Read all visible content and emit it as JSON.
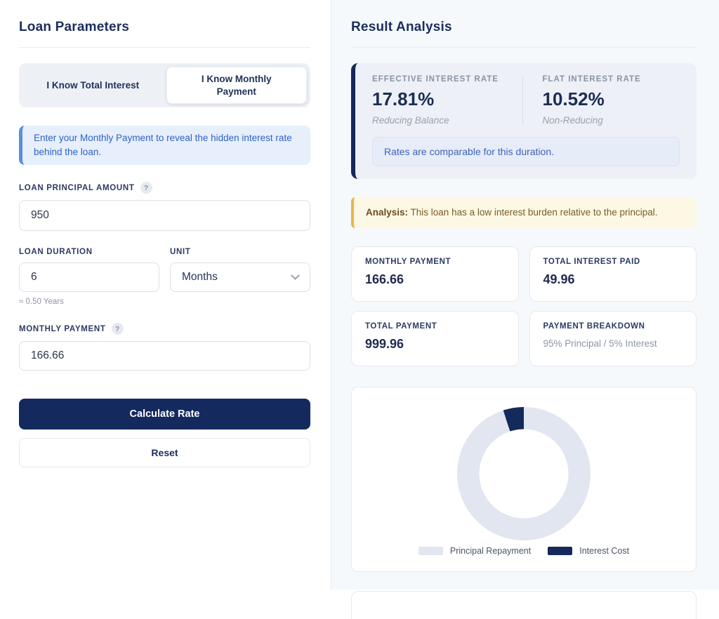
{
  "left_panel": {
    "title": "Loan Parameters",
    "mode_toggle": {
      "options": [
        {
          "label": "I Know Total Interest",
          "active": false
        },
        {
          "label": "I Know Monthly Payment",
          "active": true
        }
      ]
    },
    "info_note": "Enter your Monthly Payment to reveal the hidden interest rate behind the loan.",
    "fields": {
      "principal": {
        "label": "LOAN PRINCIPAL AMOUNT",
        "help_icon": "?",
        "value": "950"
      },
      "duration": {
        "label": "LOAN DURATION",
        "value": "6",
        "hint": "≈ 0.50 Years"
      },
      "unit": {
        "label": "UNIT",
        "selected": "Months"
      },
      "monthly_payment": {
        "label": "MONTHLY PAYMENT",
        "help_icon": "?",
        "value": "166.66"
      }
    },
    "buttons": {
      "calculate": "Calculate Rate",
      "reset": "Reset"
    }
  },
  "right_panel": {
    "title": "Result Analysis",
    "rate_card": {
      "effective": {
        "label": "EFFECTIVE INTEREST RATE",
        "value": "17.81%",
        "sublabel": "Reducing Balance"
      },
      "flat": {
        "label": "FLAT INTEREST RATE",
        "value": "10.52%",
        "sublabel": "Non-Reducing"
      },
      "note": "Rates are comparable for this duration."
    },
    "analysis": {
      "prefix": "Analysis:",
      "text": " This loan has a low interest burden relative to the principal."
    },
    "stat_cards": [
      {
        "label": "MONTHLY PAYMENT",
        "value": "166.66"
      },
      {
        "label": "TOTAL INTEREST PAID",
        "value": "49.96"
      },
      {
        "label": "TOTAL PAYMENT",
        "value": "999.96"
      },
      {
        "label": "PAYMENT BREAKDOWN",
        "value": "95% Principal / 5% Interest"
      }
    ],
    "chart_data": {
      "type": "pie",
      "subtype": "donut",
      "labels": [
        "Principal Repayment",
        "Interest Cost"
      ],
      "values": [
        95,
        5
      ],
      "colors": [
        "#e1e6f0",
        "#14295c"
      ],
      "cutout_percent": 67,
      "legend_position": "bottom",
      "slice_end_angle_deg": 360
    }
  },
  "colors": {
    "brand_navy": "#142a5e",
    "heading_navy": "#1b2d5b",
    "right_panel_bg": "#f6f9fc",
    "callout_blue_bg": "#e7effc",
    "callout_blue_border": "#5b8fdb",
    "callout_blue_text": "#2e62c4",
    "rate_card_bg": "#edf0f6",
    "analysis_bg": "#fdf8e4",
    "analysis_border": "#e9b54d"
  }
}
